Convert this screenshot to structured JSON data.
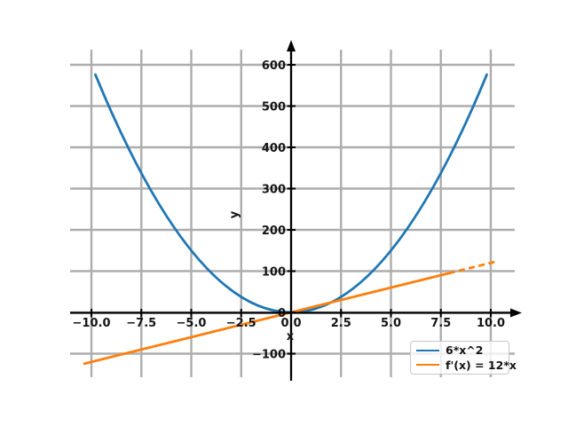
{
  "chart_data": {
    "type": "line",
    "title": "",
    "xlabel": "x",
    "ylabel": "y",
    "grid": true,
    "legend_position": "lower right",
    "xlim": [
      -11.1,
      11.5
    ],
    "ylim": [
      -168,
      655
    ],
    "x_ticks": [
      {
        "v": -10,
        "label": "−10.0"
      },
      {
        "v": -7.5,
        "label": "−7.5"
      },
      {
        "v": -5,
        "label": "−5.0"
      },
      {
        "v": -2.5,
        "label": "−2.5"
      },
      {
        "v": 0,
        "label": "0.0"
      },
      {
        "v": 2.5,
        "label": "2.5"
      },
      {
        "v": 5,
        "label": "5.0"
      },
      {
        "v": 7.5,
        "label": "7.5"
      },
      {
        "v": 10,
        "label": "10.0"
      }
    ],
    "y_ticks": [
      {
        "v": -100,
        "label": "−100"
      },
      {
        "v": 0,
        "label": "0"
      },
      {
        "v": 100,
        "label": "100"
      },
      {
        "v": 200,
        "label": "200"
      },
      {
        "v": 300,
        "label": "300"
      },
      {
        "v": 400,
        "label": "400"
      },
      {
        "v": 500,
        "label": "500"
      },
      {
        "v": 600,
        "label": "600"
      }
    ],
    "series": [
      {
        "name": "6*x^2",
        "formula": "y = 6*x^2",
        "color": "#1f77b4",
        "shape": "parabola",
        "line_style": "solid",
        "x_range": [
          -9.8,
          9.8
        ],
        "points": [
          [
            -9.8,
            576.2
          ],
          [
            -7.5,
            337.5
          ],
          [
            -5,
            150
          ],
          [
            -2.5,
            37.5
          ],
          [
            0,
            0
          ],
          [
            2.5,
            37.5
          ],
          [
            5,
            150
          ],
          [
            7.5,
            337.5
          ],
          [
            9.8,
            576.2
          ]
        ]
      },
      {
        "name": "f'(x) = 12*x",
        "formula": "y = 12*x",
        "color": "#ff7f0e",
        "shape": "line",
        "slope": 12,
        "solid_range": [
          -10.35,
          7.9
        ],
        "dashed_range": [
          7.9,
          10.35
        ],
        "points": [
          [
            -10.35,
            -124.2
          ],
          [
            -7.5,
            -90
          ],
          [
            -5,
            -60
          ],
          [
            -2.5,
            -30
          ],
          [
            0,
            0
          ],
          [
            2.5,
            30
          ],
          [
            5,
            60
          ],
          [
            7.5,
            90
          ],
          [
            10.35,
            124.2
          ]
        ]
      }
    ],
    "colors": {
      "grid": "#adadad",
      "axis": "#000000",
      "tick_label": "#141414",
      "background": "#ffffff",
      "legend_border": "#c6c6c6"
    }
  }
}
